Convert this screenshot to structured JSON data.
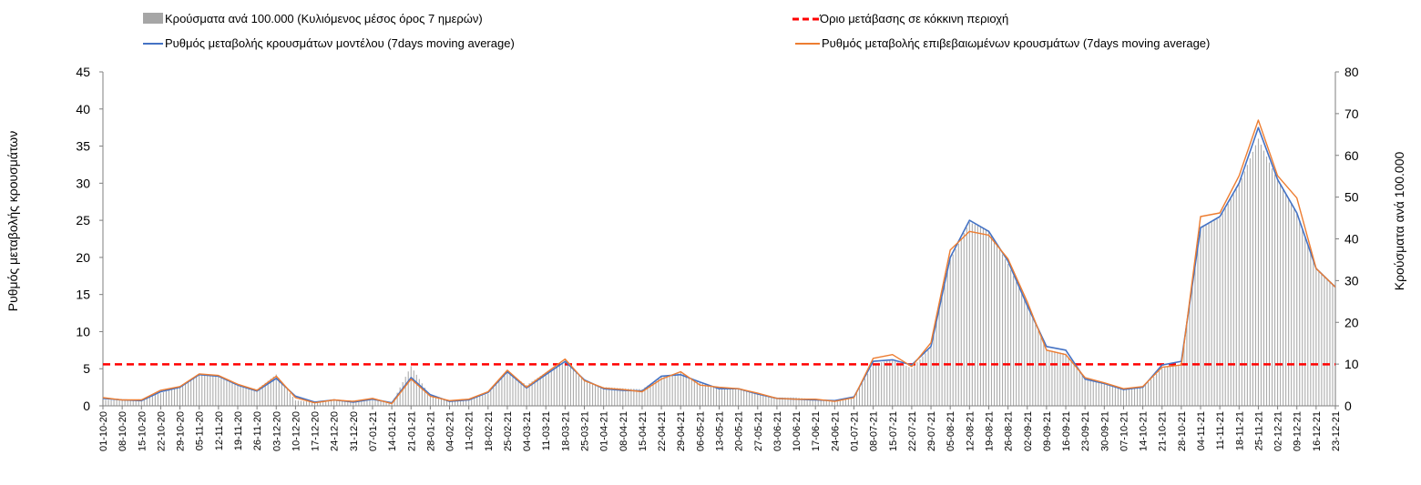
{
  "chart_data": {
    "type": "bar+line",
    "legend": {
      "bars": "Κρούσματα ανά 100.000 (Κυλιόμενος μέσος όρος 7 ημερών)",
      "threshold": "Όριο μετάβασης σε κόκκινη περιοχή",
      "model": "Ρυθμός μεταβολής κρουσμάτων μοντέλου (7days moving average)",
      "confirmed": "Ρυθμός μεταβολής επιβεβαιωμένων κρουσμάτων (7days moving average)"
    },
    "y_left": {
      "label": "Ρυθμός μεταβολής κρουσμάτων",
      "min": 0,
      "max": 45,
      "step": 5,
      "ticks": [
        "0",
        "5",
        "10",
        "15",
        "20",
        "25",
        "30",
        "35",
        "40",
        "45"
      ]
    },
    "y_right": {
      "label": "Κρούσματα ανά 100.000",
      "min": 0,
      "max": 80,
      "step": 10,
      "ticks": [
        "0",
        "10",
        "20",
        "30",
        "40",
        "50",
        "60",
        "70",
        "80"
      ]
    },
    "x_labels": [
      "01-10-20",
      "08-10-20",
      "15-10-20",
      "22-10-20",
      "29-10-20",
      "05-11-20",
      "12-11-20",
      "19-11-20",
      "26-11-20",
      "03-12-20",
      "10-12-20",
      "17-12-20",
      "24-12-20",
      "31-12-20",
      "07-01-21",
      "14-01-21",
      "21-01-21",
      "28-01-21",
      "04-02-21",
      "11-02-21",
      "18-02-21",
      "25-02-21",
      "04-03-21",
      "11-03-21",
      "18-03-21",
      "25-03-21",
      "01-04-21",
      "08-04-21",
      "15-04-21",
      "22-04-21",
      "29-04-21",
      "06-05-21",
      "13-05-21",
      "20-05-21",
      "27-05-21",
      "03-06-21",
      "10-06-21",
      "17-06-21",
      "24-06-21",
      "01-07-21",
      "08-07-21",
      "15-07-21",
      "22-07-21",
      "29-07-21",
      "05-08-21",
      "12-08-21",
      "19-08-21",
      "26-08-21",
      "02-09-21",
      "09-09-21",
      "16-09-21",
      "23-09-21",
      "30-09-21",
      "07-10-21",
      "14-10-21",
      "21-10-21",
      "28-10-21",
      "04-11-21",
      "11-11-21",
      "18-11-21",
      "25-11-21",
      "02-12-21",
      "09-12-21",
      "16-12-21",
      "23-12-21"
    ],
    "threshold_value": 5.6,
    "model_rate_weekly": [
      1.0,
      0.8,
      0.7,
      1.9,
      2.5,
      4.2,
      4.0,
      2.8,
      2.0,
      3.7,
      1.3,
      0.5,
      0.8,
      0.5,
      0.9,
      0.4,
      3.8,
      1.5,
      0.6,
      0.8,
      1.8,
      4.6,
      2.4,
      4.2,
      6.0,
      3.5,
      2.3,
      2.1,
      2.0,
      4.0,
      4.2,
      3.2,
      2.3,
      2.3,
      1.6,
      1.0,
      0.9,
      0.8,
      0.7,
      1.2,
      6.0,
      6.2,
      5.5,
      8.0,
      20.0,
      25.0,
      23.5,
      19.5,
      13.5,
      8.0,
      7.5,
      3.6,
      3.0,
      2.2,
      2.5,
      5.5,
      6.0,
      24.0,
      25.5,
      30.0,
      37.5,
      30.5,
      26.0,
      18.5,
      16.0
    ],
    "confirmed_rate_weekly": [
      1.1,
      0.8,
      0.8,
      2.1,
      2.6,
      4.3,
      4.1,
      2.9,
      2.1,
      4.0,
      1.1,
      0.4,
      0.8,
      0.6,
      1.0,
      0.3,
      3.6,
      1.3,
      0.7,
      0.9,
      1.9,
      4.8,
      2.5,
      4.4,
      6.3,
      3.4,
      2.4,
      2.2,
      1.9,
      3.6,
      4.6,
      2.8,
      2.5,
      2.3,
      1.7,
      1.0,
      0.9,
      0.9,
      0.6,
      1.1,
      6.4,
      6.9,
      5.3,
      8.5,
      21.0,
      23.5,
      23.0,
      19.8,
      14.0,
      7.5,
      6.9,
      3.8,
      3.1,
      2.3,
      2.6,
      5.2,
      5.5,
      25.5,
      26.0,
      31.0,
      38.5,
      31.0,
      28.0,
      18.5,
      16.0
    ],
    "cases_per_100k_weekly": [
      1.5,
      1.3,
      1.6,
      3.0,
      4.8,
      7.5,
      7.0,
      4.8,
      4.0,
      7.5,
      1.3,
      0.9,
      1.3,
      1.3,
      1.7,
      0.6,
      9.5,
      2.3,
      1.1,
      1.5,
      2.9,
      8.0,
      5.0,
      8.0,
      10.5,
      6.0,
      4.5,
      4.2,
      4.0,
      7.0,
      8.0,
      5.5,
      4.2,
      4.0,
      3.0,
      2.0,
      2.0,
      1.5,
      1.3,
      2.0,
      10.0,
      11.0,
      9.0,
      14.0,
      35.0,
      44.0,
      42.0,
      34.0,
      24.0,
      13.5,
      12.5,
      6.5,
      5.5,
      4.0,
      4.3,
      9.0,
      10.0,
      43.0,
      45.0,
      53.0,
      64.0,
      54.0,
      46.0,
      33.0,
      28.5
    ]
  }
}
